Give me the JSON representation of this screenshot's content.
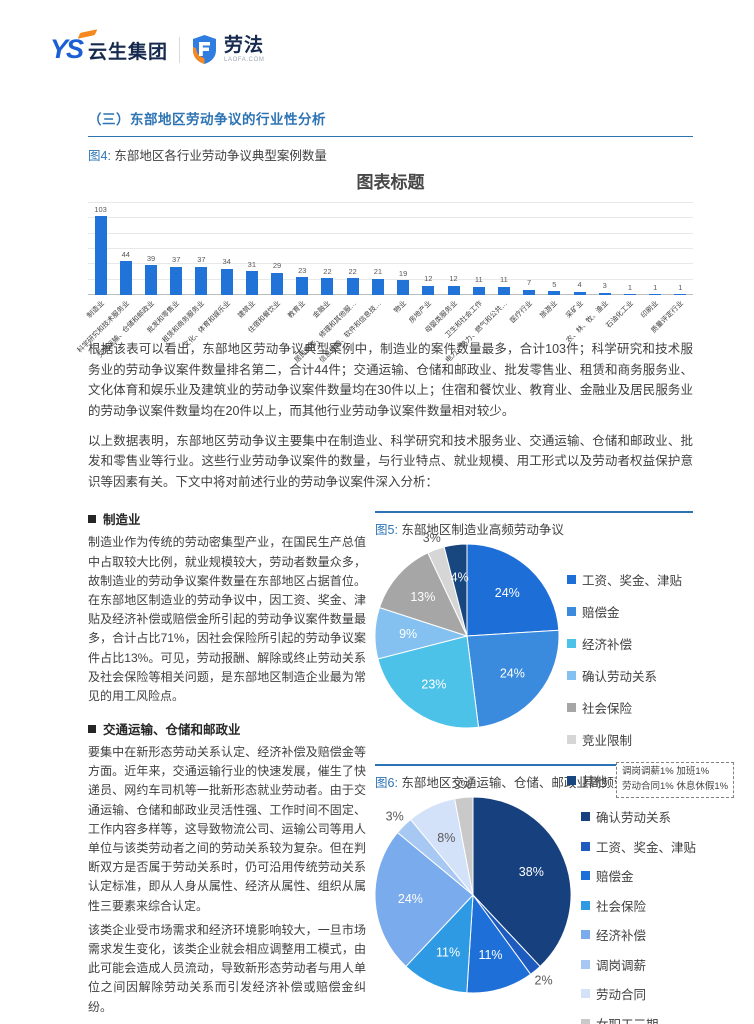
{
  "header": {
    "logo_ys": "YS",
    "logo_company": "云生集团",
    "logo_laofa": "劳法",
    "logo_laofa_sub": "LAOFA.COM"
  },
  "section": {
    "title": "（三）东部地区劳动争议的行业性分析"
  },
  "figure4": {
    "tag": "图4:",
    "caption": "东部地区各行业劳动争议典型案例数量"
  },
  "figure5": {
    "tag": "图5:",
    "caption": "东部地区制造业高频劳动争议"
  },
  "figure6": {
    "tag": "图6:",
    "caption": "东部地区交通运输、仓储、邮政业高频劳动争议"
  },
  "paragraphs": {
    "p1": "根据该表可以看出，东部地区劳动争议典型案例中，制造业的案件数量最多，合计103件；科学研究和技术服务业的劳动争议案件数量排名第二，合计44件；交通运输、仓储和邮政业、批发零售业、租赁和商务服务业、文化体育和娱乐业及建筑业的劳动争议案件数量均在30件以上；住宿和餐饮业、教育业、金融业及居民服务业的劳动争议案件数量均在20件以上，而其他行业劳动争议案件数量相对较少。",
    "p2": "以上数据表明，东部地区劳动争议主要集中在制造业、科学研究和技术服务业、交通运输、仓储和邮政业、批发和零售业等行业。这些行业劳动争议案件的数量，与行业特点、就业规模、用工形式以及劳动者权益保护意识等因素有关。下文中将对前述行业的劳动争议案件深入分析："
  },
  "sections": {
    "manufacturing": {
      "heading": "制造业",
      "body": "制造业作为传统的劳动密集型产业，在国民生产总值中占取较大比例，就业规模较大，劳动者数量众多，故制造业的劳动争议案件数量在东部地区占据首位。在东部地区制造业的劳动争议中，因工资、奖金、津贴及经济补偿或赔偿金所引起的劳动争议案件数量最多，合计占比71%，因社会保险所引起的劳动争议案件占比13%。可见，劳动报酬、解除或终止劳动关系及社会保险等相关问题，是东部地区制造企业最为常见的用工风险点。"
    },
    "transport": {
      "heading": "交通运输、仓储和邮政业",
      "body1": "要集中在新形态劳动关系认定、经济补偿及赔偿金等方面。近年来，交通运输行业的快速发展，催生了快递员、网约车司机等一批新形态就业劳动者。由于交通运输、仓储和邮政业灵活性强、工作时间不固定、工作内容多样等，这导致物流公司、运输公司等用人单位与该类劳动者之间的劳动关系较为复杂。但在判断双方是否属于劳动关系时，仍可沿用传统劳动关系认定标准，即从人身从属性、经济从属性、组织从属性三要素来综合认定。",
      "body2": "该类企业受市场需求和经济环境影响较大，一旦市场需求发生变化，该类企业就会相应调整用工模式，由此可能会造成人员流动，导致新形态劳动者与用人单位之间因解除劳动关系而引发经济补偿或赔偿金纠纷。"
    }
  },
  "chart_data": [
    {
      "type": "bar",
      "title": "图表标题",
      "categories": [
        "制造业",
        "科学研究和技术服务业",
        "交通运输、仓储和邮政业",
        "批发和零售业",
        "租赁和商务服务业",
        "文化、体育和娱乐业",
        "建筑业",
        "住宿和餐饮业",
        "教育业",
        "金融业",
        "居民服务、修理和其他服…",
        "信息传输、软件和信息技…",
        "物业",
        "房地产业",
        "母婴类服务业",
        "卫生和社会工作",
        "电力、热力、燃气和公共…",
        "医疗行业",
        "旅游业",
        "采矿业",
        "农、林、牧、渔业",
        "石油化工业",
        "印刷业",
        "质量评定行业"
      ],
      "values": [
        103,
        44,
        39,
        37,
        37,
        34,
        31,
        29,
        23,
        22,
        22,
        21,
        19,
        12,
        12,
        11,
        11,
        7,
        5,
        4,
        3,
        1,
        1,
        1
      ],
      "xlabel": "",
      "ylabel": "",
      "ylim": [
        0,
        120
      ],
      "grid": true,
      "bar_color": "#2273d8"
    },
    {
      "type": "pie",
      "title": "东部地区制造业高频劳动争议",
      "legend_position": "right",
      "series": [
        {
          "name": "工资、奖金、津贴",
          "value": 24,
          "color": "#1e6ed8"
        },
        {
          "name": "赔偿金",
          "value": 24,
          "color": "#3a8bdd"
        },
        {
          "name": "经济补偿",
          "value": 23,
          "color": "#4cc2e8"
        },
        {
          "name": "确认劳动关系",
          "value": 9,
          "color": "#85c1f0"
        },
        {
          "name": "社会保险",
          "value": 13,
          "color": "#a6a6a6"
        },
        {
          "name": "竞业限制",
          "value": 3,
          "color": "#d6d6d6"
        },
        {
          "name": "其他",
          "value": 4,
          "color": "#17477e",
          "note": [
            "调岗调薪1%  加班1%",
            "劳动合同1% 休息休假1%"
          ]
        }
      ]
    },
    {
      "type": "pie",
      "title": "东部地区交通运输、仓储、邮政业高频劳动争议",
      "legend_position": "right",
      "series": [
        {
          "name": "确认劳动关系",
          "value": 38,
          "color": "#17417e"
        },
        {
          "name": "工资、奖金、津贴",
          "value": 2,
          "color": "#1d5bbf"
        },
        {
          "name": "赔偿金",
          "value": 11,
          "color": "#1f6fd9"
        },
        {
          "name": "社会保险",
          "value": 11,
          "color": "#2d9ae3"
        },
        {
          "name": "经济补偿",
          "value": 24,
          "color": "#7aabec"
        },
        {
          "name": "调岗调薪",
          "value": 3,
          "color": "#a7c8f2"
        },
        {
          "name": "劳动合同",
          "value": 8,
          "color": "#d3e2f8"
        },
        {
          "name": "女职工三期",
          "value": 3,
          "color": "#c9c9c9"
        }
      ]
    }
  ],
  "colors": {
    "accent_blue": "#2e74b5",
    "bar_blue": "#2273d8",
    "brand_blue": "#1c5fd4",
    "brand_orange": "#f5881f",
    "text": "#3f3f3f"
  }
}
